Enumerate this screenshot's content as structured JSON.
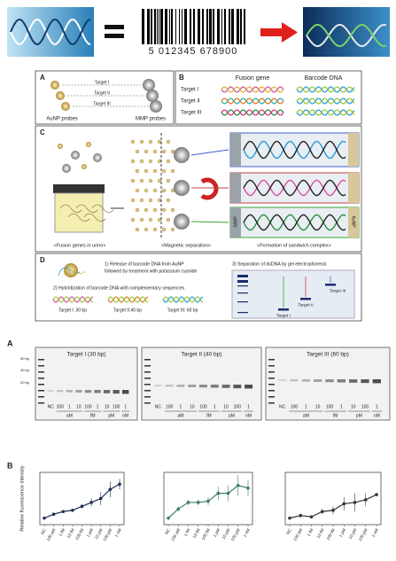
{
  "barcode_digits": "5 012345 678900",
  "panel_a": {
    "label": "A",
    "targets": [
      "Target I",
      "Target II",
      "Target III"
    ],
    "left_label": "AuNP probes",
    "right_label": "MMP probes"
  },
  "panel_b": {
    "label": "B",
    "headers": [
      "Fusion gene",
      "Barcode DNA"
    ],
    "targets": [
      "Target I",
      "Target II",
      "Target III"
    ]
  },
  "panel_c": {
    "label": "C",
    "captions": [
      "<Fusion genes in urine>",
      "<Magnetic separation>",
      "<Formation of sandwich complex>"
    ],
    "side_labels": [
      "MMP",
      "AuNP"
    ]
  },
  "panel_d": {
    "label": "D",
    "step1": [
      "1) Release of barcode DNA from AuNP",
      "followed by treatment with potassium cyanide"
    ],
    "step2": "2) Hybridization of barcode DNA with complementary sequences",
    "hybrids": [
      "Target I: 30 bp",
      "Target II:40 bp",
      "Target III: 60 bp"
    ],
    "step3": "3) Separation of dsDNA by gel electrophoresis",
    "gel_targets": [
      "Target I",
      "Target II",
      "Target III"
    ]
  },
  "gel_section": {
    "label": "A",
    "titles": [
      "Target I (30 bp)",
      "Target II (40 bp)",
      "Target III (60 bp)"
    ],
    "ladder": [
      "60 bp",
      "40 bp",
      "20 bp"
    ],
    "lanes": [
      "NC",
      "100",
      "1",
      "10",
      "100",
      "1",
      "10",
      "100",
      "1"
    ],
    "units": [
      "aM",
      "fM",
      "pM",
      "nM"
    ]
  },
  "plots_label": "B",
  "chart_data": [
    {
      "type": "line",
      "y_label": "Relative fluorescence intensity",
      "categories": [
        "NC",
        "100 aM",
        "1 fM",
        "10 fM",
        "100 fM",
        "1 pM",
        "10 pM",
        "100 pM",
        "1 nM"
      ],
      "ylim": [
        0.5,
        4.5
      ],
      "series": [
        {
          "color": "#1f2d50",
          "values": [
            1.0,
            1.3,
            1.5,
            1.6,
            1.9,
            2.2,
            2.5,
            3.2,
            3.6
          ],
          "errors": [
            0.05,
            0.1,
            0.1,
            0.1,
            0.15,
            0.3,
            0.5,
            0.6,
            0.4
          ]
        }
      ]
    },
    {
      "type": "line",
      "categories": [
        "NC",
        "100 aM",
        "1 fM",
        "10 fM",
        "100 fM",
        "1 pM",
        "10 pM",
        "100 pM",
        "1 nM"
      ],
      "ylim": [
        0.5,
        4.5
      ],
      "series": [
        {
          "color": "#3f7f5f",
          "values": [
            1.0,
            1.7,
            2.2,
            2.2,
            2.3,
            2.9,
            2.9,
            3.5,
            3.3
          ],
          "errors": [
            0.05,
            0.2,
            0.2,
            0.2,
            0.3,
            0.5,
            0.6,
            0.8,
            0.6
          ]
        }
      ]
    },
    {
      "type": "line",
      "categories": [
        "NC",
        "100 aM",
        "1 fM",
        "10 fM",
        "100 fM",
        "1 pM",
        "10 pM",
        "100 pM",
        "1 nM"
      ],
      "ylim": [
        0.5,
        4.5
      ],
      "series": [
        {
          "color": "#333333",
          "values": [
            1.0,
            1.2,
            1.1,
            1.5,
            1.6,
            2.1,
            2.2,
            2.4,
            2.8
          ],
          "errors": [
            0.05,
            0.15,
            0.1,
            0.2,
            0.3,
            0.5,
            0.7,
            0.5,
            0.1
          ]
        }
      ]
    }
  ]
}
